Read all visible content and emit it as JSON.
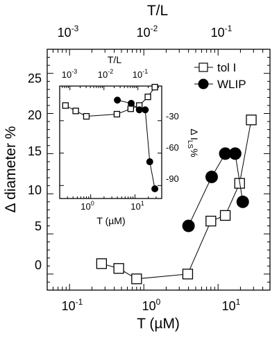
{
  "chart_data": [
    {
      "type": "scatter",
      "scale": {
        "x": "log",
        "y": "linear"
      },
      "xlabel": "T (µM)",
      "x2label": "T/L",
      "ylabel": "Δ diameter %",
      "xlim": [
        0.05,
        50
      ],
      "x2lim": [
        0.0005,
        0.5
      ],
      "ylim": [
        -2,
        28
      ],
      "x_ticks": [
        {
          "value": 0.1,
          "base": "10",
          "exp": "-1"
        },
        {
          "value": 1,
          "base": "10",
          "exp": "0"
        },
        {
          "value": 10,
          "base": "10",
          "exp": "1"
        }
      ],
      "x2_ticks": [
        {
          "value": 0.001,
          "base": "10",
          "exp": "-3"
        },
        {
          "value": 0.01,
          "base": "10",
          "exp": "-2"
        },
        {
          "value": 0.1,
          "base": "10",
          "exp": "-1"
        }
      ],
      "y_ticks": [
        "0",
        "5",
        "10",
        "15",
        "20",
        "25"
      ],
      "legend": {
        "position": "top-right",
        "entries": [
          {
            "label": "tol I",
            "marker": "open-square"
          },
          {
            "label": "WLIP",
            "marker": "filled-circle"
          }
        ]
      },
      "series": [
        {
          "name": "tol I",
          "marker": "open-square",
          "x": [
            0.27,
            0.46,
            0.8,
            3.9,
            8.0,
            12.5,
            19.5,
            28.0
          ],
          "y": [
            1.3,
            0.7,
            -0.6,
            0.0,
            6.6,
            7.3,
            11.3,
            19.2
          ]
        },
        {
          "name": "WLIP",
          "marker": "filled-circle",
          "x": [
            4.0,
            8.2,
            12.5,
            17.0,
            21.5
          ],
          "y": [
            6.0,
            12.1,
            15.0,
            15.0,
            9.0
          ]
        }
      ]
    },
    {
      "type": "scatter",
      "scale": {
        "x": "log",
        "y": "linear"
      },
      "xlabel": "T (µM)",
      "x2label": "T/L",
      "ylabel": "Δ I",
      "ylabel_sub": "LS",
      "ylabel_suffix": "%",
      "xlim": [
        0.2,
        40
      ],
      "x2lim": [
        0.0005,
        0.5
      ],
      "ylim": [
        -102,
        2
      ],
      "x_ticks": [
        {
          "value": 1,
          "base": "10",
          "exp": "0"
        },
        {
          "value": 10,
          "base": "10",
          "exp": "1"
        }
      ],
      "x2_ticks": [
        {
          "value": 0.001,
          "base": "10",
          "exp": "-3"
        },
        {
          "value": 0.01,
          "base": "10",
          "exp": "-2"
        },
        {
          "value": 0.1,
          "base": "10",
          "exp": "-1"
        }
      ],
      "y_ticks": [
        "-30",
        "-60",
        "-90"
      ],
      "series": [
        {
          "name": "tol I",
          "marker": "open-square",
          "x": [
            0.27,
            0.46,
            0.8,
            3.9,
            8.0,
            12.5,
            19.5,
            28.0
          ],
          "y": [
            -16,
            -21,
            -26,
            -24,
            -19,
            -16,
            -8,
            1
          ]
        },
        {
          "name": "WLIP",
          "marker": "filled-circle",
          "x": [
            4.0,
            8.2,
            12.5,
            17.0,
            21.5,
            28.0
          ],
          "y": [
            -11,
            -14,
            -20,
            -20,
            -68,
            -93
          ]
        }
      ]
    }
  ]
}
